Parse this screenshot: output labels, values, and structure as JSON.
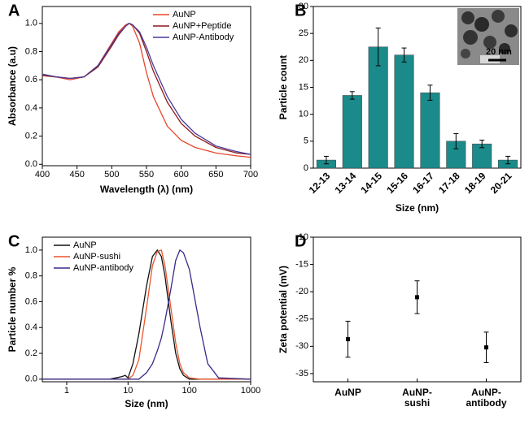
{
  "chart_data": [
    {
      "type": "line",
      "panel": "A",
      "xlabel": "Wavelength (λ) (nm)",
      "ylabel": "Absorbance (a.u)",
      "x": [
        400,
        420,
        440,
        460,
        480,
        500,
        510,
        520,
        525,
        530,
        540,
        550,
        560,
        580,
        600,
        620,
        650,
        680,
        700
      ],
      "series": [
        {
          "name": "AuNP",
          "color": "#e8452c",
          "values": [
            0.63,
            0.62,
            0.6,
            0.62,
            0.7,
            0.86,
            0.94,
            0.99,
            1.0,
            0.98,
            0.86,
            0.65,
            0.48,
            0.27,
            0.17,
            0.12,
            0.08,
            0.06,
            0.05
          ]
        },
        {
          "name": "AuNP+Peptide",
          "color": "#8b1a1a",
          "values": [
            0.63,
            0.62,
            0.61,
            0.62,
            0.69,
            0.84,
            0.92,
            0.98,
            1.0,
            0.99,
            0.93,
            0.8,
            0.66,
            0.44,
            0.29,
            0.2,
            0.12,
            0.08,
            0.07
          ]
        },
        {
          "name": "AuNP-Antibody",
          "color": "#4b3a9a",
          "values": [
            0.64,
            0.62,
            0.61,
            0.62,
            0.7,
            0.85,
            0.93,
            0.98,
            1.0,
            0.99,
            0.94,
            0.83,
            0.7,
            0.48,
            0.32,
            0.22,
            0.13,
            0.09,
            0.07
          ]
        }
      ],
      "xlim": [
        400,
        700
      ],
      "xticks": [
        400,
        450,
        500,
        550,
        600,
        650,
        700
      ],
      "ylim": [
        -0.01,
        1.12
      ],
      "yticks": [
        {
          "value": 0,
          "label": "0.0"
        },
        0.2,
        0.4,
        0.6,
        0.8,
        {
          "value": 1,
          "label": "1.0"
        }
      ],
      "legend": "upper right"
    },
    {
      "type": "bar",
      "panel": "B",
      "xlabel": "Size (nm)",
      "ylabel": "Particle count",
      "annotation": "20 nm",
      "categories": [
        "12-13",
        "13-14",
        "14-15",
        "15-16",
        "16-17",
        "17-18",
        "18-19",
        "20-21"
      ],
      "values": [
        1.5,
        13.5,
        22.5,
        21,
        14,
        5,
        4.5,
        1.5
      ],
      "errors": [
        0.7,
        0.7,
        3.5,
        1.3,
        1.4,
        1.4,
        0.7,
        0.7
      ],
      "color": "#1b8a8a",
      "ylim": [
        0,
        30
      ],
      "yticks": [
        0,
        5,
        10,
        15,
        20,
        25,
        30
      ]
    },
    {
      "type": "line",
      "panel": "C",
      "xlabel": "Size (nm)",
      "ylabel": "Particle number %",
      "xscale": "log",
      "x": [
        0.4,
        1,
        5,
        8,
        9,
        10,
        12,
        15,
        20,
        25,
        30,
        35,
        40,
        50,
        60,
        70,
        80,
        100,
        150,
        200,
        300,
        1000
      ],
      "series": [
        {
          "name": "AuNP",
          "color": "#111111",
          "values": [
            0,
            0,
            0,
            0.02,
            0.03,
            0.01,
            0.12,
            0.35,
            0.72,
            0.95,
            1.0,
            0.95,
            0.8,
            0.45,
            0.2,
            0.08,
            0.03,
            0,
            0,
            0,
            0,
            0
          ]
        },
        {
          "name": "AuNP-sushi",
          "color": "#e8562c",
          "values": [
            0,
            0,
            0,
            0,
            0,
            0,
            0.03,
            0.15,
            0.55,
            0.88,
            0.99,
            1.0,
            0.88,
            0.55,
            0.28,
            0.12,
            0.05,
            0.01,
            0,
            0,
            0,
            0
          ]
        },
        {
          "name": "AuNP-antibody",
          "color": "#3a2a8a",
          "values": [
            0,
            0,
            0,
            0,
            0,
            0,
            0,
            0,
            0.05,
            0.12,
            0.22,
            0.32,
            0.45,
            0.7,
            0.92,
            1.0,
            0.98,
            0.85,
            0.4,
            0.12,
            0.01,
            0
          ]
        }
      ],
      "xlim": [
        0.4,
        1000
      ],
      "xticks": [
        1,
        10,
        100,
        1000
      ],
      "ylim": [
        -0.02,
        1.1
      ],
      "yticks": [
        {
          "value": 0,
          "label": "0.0"
        },
        0.2,
        0.4,
        0.6,
        0.8,
        {
          "value": 1,
          "label": "1.0"
        }
      ],
      "legend": "upper left"
    },
    {
      "type": "errorbar",
      "panel": "D",
      "ylabel": "Zeta potential (mV)",
      "categories": [
        [
          "AuNP"
        ],
        [
          "AuNP-",
          "sushi"
        ],
        [
          "AuNP-",
          "antibody"
        ]
      ],
      "values": [
        -28.7,
        -21,
        -30.2
      ],
      "errors": [
        3.3,
        3,
        2.8
      ],
      "color": "#000000",
      "ylim": [
        -36.5,
        -10
      ],
      "yticks": [
        -35,
        -30,
        -25,
        -20,
        -15,
        -10
      ]
    }
  ]
}
